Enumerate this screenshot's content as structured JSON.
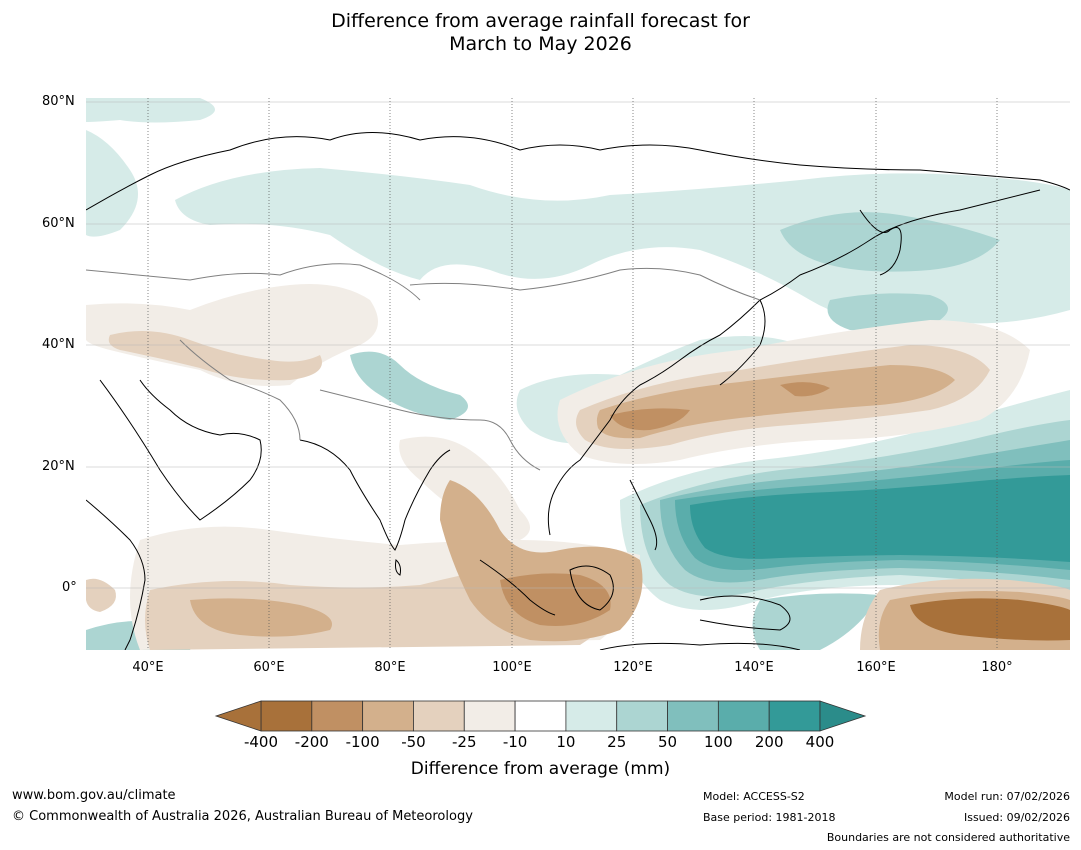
{
  "title": {
    "line1": "Difference from average rainfall forecast for",
    "line2": "March to May 2026"
  },
  "map": {
    "lat_labels": [
      "80°N",
      "60°N",
      "40°N",
      "20°N",
      "0°"
    ],
    "lon_labels": [
      "40°E",
      "60°E",
      "80°E",
      "100°E",
      "120°E",
      "140°E",
      "160°E",
      "180°"
    ],
    "ocean_color": "#ffffff",
    "coast_color": "#000000",
    "border_color": "#808080"
  },
  "colorbar": {
    "label": "Difference from average (mm)",
    "ticks": [
      "-400",
      "-200",
      "-100",
      "-50",
      "-25",
      "-10",
      "10",
      "25",
      "50",
      "100",
      "200",
      "400"
    ],
    "colors": [
      "#a8713a",
      "#c09063",
      "#d3b08c",
      "#e4d1be",
      "#f2ede7",
      "#ffffff",
      "#d6ebe8",
      "#acd5d2",
      "#80bfbd",
      "#5aadab",
      "#339a98"
    ],
    "extend_low_color": "#a8713a",
    "extend_high_color": "#2b8c8a"
  },
  "footer": {
    "website": "www.bom.gov.au/climate",
    "copyright": "© Commonwealth of Australia 2026, Australian Bureau of Meteorology",
    "model": "Model: ACCESS-S2",
    "base_period": "Base period: 1981-2018",
    "model_run": "Model run: 07/02/2026",
    "issued": "Issued: 09/02/2026",
    "disclaimer": "Boundaries are not considered authoritative"
  }
}
